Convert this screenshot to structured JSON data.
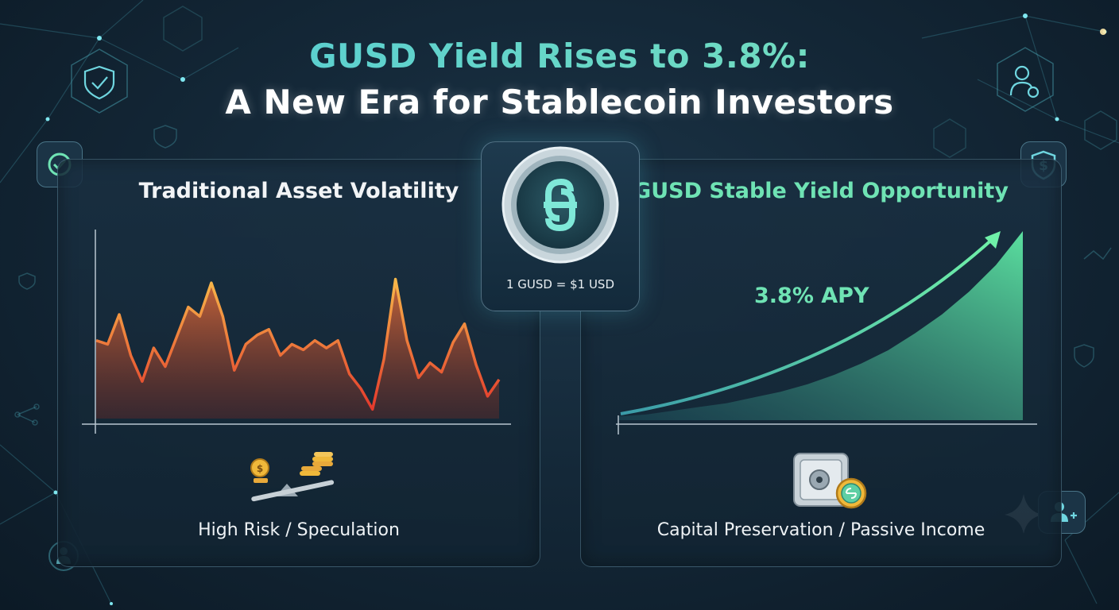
{
  "title": {
    "line1": "GUSD Yield Rises to 3.8%:",
    "line2": "A New Era for Stablecoin Investors"
  },
  "left_panel": {
    "title": "Traditional Asset Volatility",
    "caption": "High Risk / Speculation",
    "icon": "balance-scale-coins-icon"
  },
  "right_panel": {
    "title": "GUSD Stable Yield Opportunity",
    "caption": "Capital Preservation / Passive Income",
    "apy_label": "3.8% APY",
    "icon": "vault-coin-icon"
  },
  "coin": {
    "peg_label": "1 GUSD = $1 USD",
    "icon": "gusd-logo-icon"
  },
  "colors": {
    "accent_teal": "#5ed6d0",
    "accent_green": "#6fe3b4",
    "volatility_red": "#e8452f",
    "volatility_orange": "#f29a3a",
    "background": "#142838"
  },
  "chart_data": [
    {
      "type": "area",
      "values": [
        0.42,
        0.4,
        0.56,
        0.34,
        0.2,
        0.38,
        0.28,
        0.44,
        0.6,
        0.55,
        0.73,
        0.55,
        0.26,
        0.4,
        0.45,
        0.48,
        0.34,
        0.4,
        0.37,
        0.42,
        0.38,
        0.42,
        0.24,
        0.16,
        0.05,
        0.32,
        0.75,
        0.42,
        0.22,
        0.3,
        0.25,
        0.41,
        0.51,
        0.29,
        0.12,
        0.21
      ],
      "grid": false
    },
    {
      "type": "area",
      "values": [
        0.02,
        0.03,
        0.05,
        0.07,
        0.09,
        0.12,
        0.15,
        0.19,
        0.24,
        0.3,
        0.37,
        0.46,
        0.56,
        0.68,
        0.82,
        1.0
      ],
      "grid": false
    }
  ]
}
